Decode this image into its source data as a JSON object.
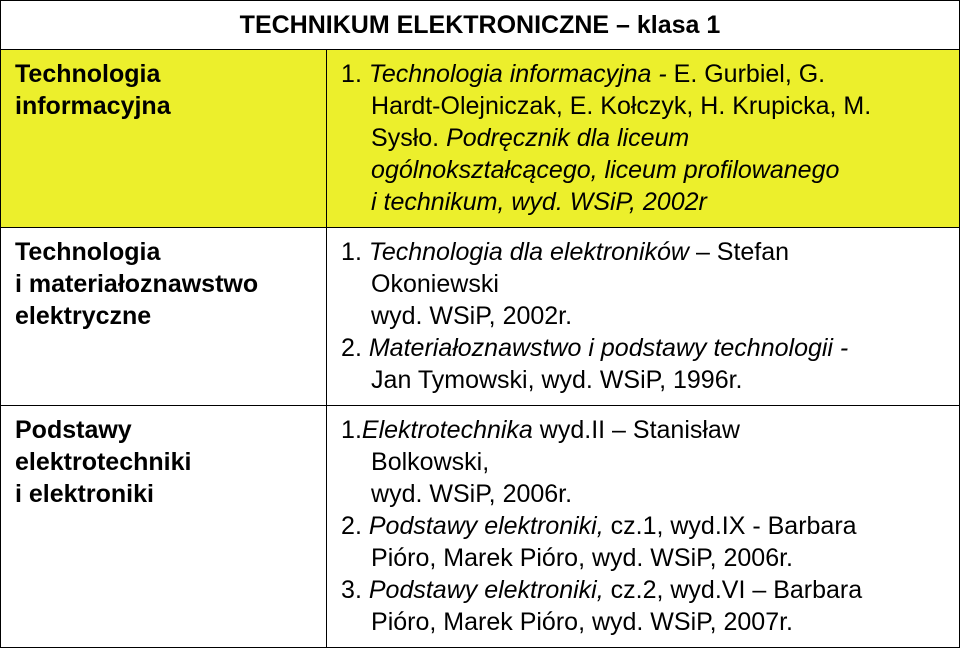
{
  "title": "TECHNIKUM ELEKTRONICZNE – klasa 1",
  "colwidths": [
    "34%",
    "66%"
  ],
  "highlight_bg": "#ecef2c",
  "rows": [
    {
      "label_lines": [
        "Technologia",
        "informacyjna"
      ],
      "content": {
        "n1": "1.",
        "l1a": "Technologia informacyjna -",
        "l1b": "E. Gurbiel, G.",
        "l2": "Hardt-Olejniczak, E. Kołczyk, H. Krupicka, M.",
        "l3a": "Sysło. ",
        "l3b": "Podręcznik dla liceum",
        "l4": "ogólnokształcącego, liceum profilowanego",
        "l5": "i technikum, wyd. WSiP, 2002r"
      }
    },
    {
      "label_lines": [
        "Technologia",
        "i materiałoznawstwo",
        "elektryczne"
      ],
      "content": {
        "n1": "1.",
        "l1": "Technologia dla elektroników",
        "l1b": "– Stefan",
        "l2a": "Okoniewski",
        "l2b": "wyd. WSiP, 2002r.",
        "n2": "2.",
        "l3": "Materiałoznawstwo i podstawy technologii  -",
        "l4": "Jan Tymowski, wyd. WSiP, 1996r."
      }
    },
    {
      "label_lines": [
        "Podstawy",
        "elektrotechniki",
        "i elektroniki"
      ],
      "content": {
        "n1": "1.",
        "l1a": "Elektrotechnika",
        "l1b": "wyd.II – Stanisław",
        "l2a": "Bolkowski,",
        "l2b": "wyd. WSiP, 2006r.",
        "n2": "2.",
        "l3a": "Podstawy elektroniki, ",
        "l3b": "cz.1, wyd.IX  - Barbara",
        "l4": "Pióro, Marek Pióro, wyd. WSiP, 2006r.",
        "n3": "3.",
        "l5a": "Podstawy elektroniki,  ",
        "l5b": "cz.2, wyd.VI – Barbara",
        "l6": "Pióro, Marek Pióro, wyd. WSiP, 2007r."
      }
    }
  ]
}
